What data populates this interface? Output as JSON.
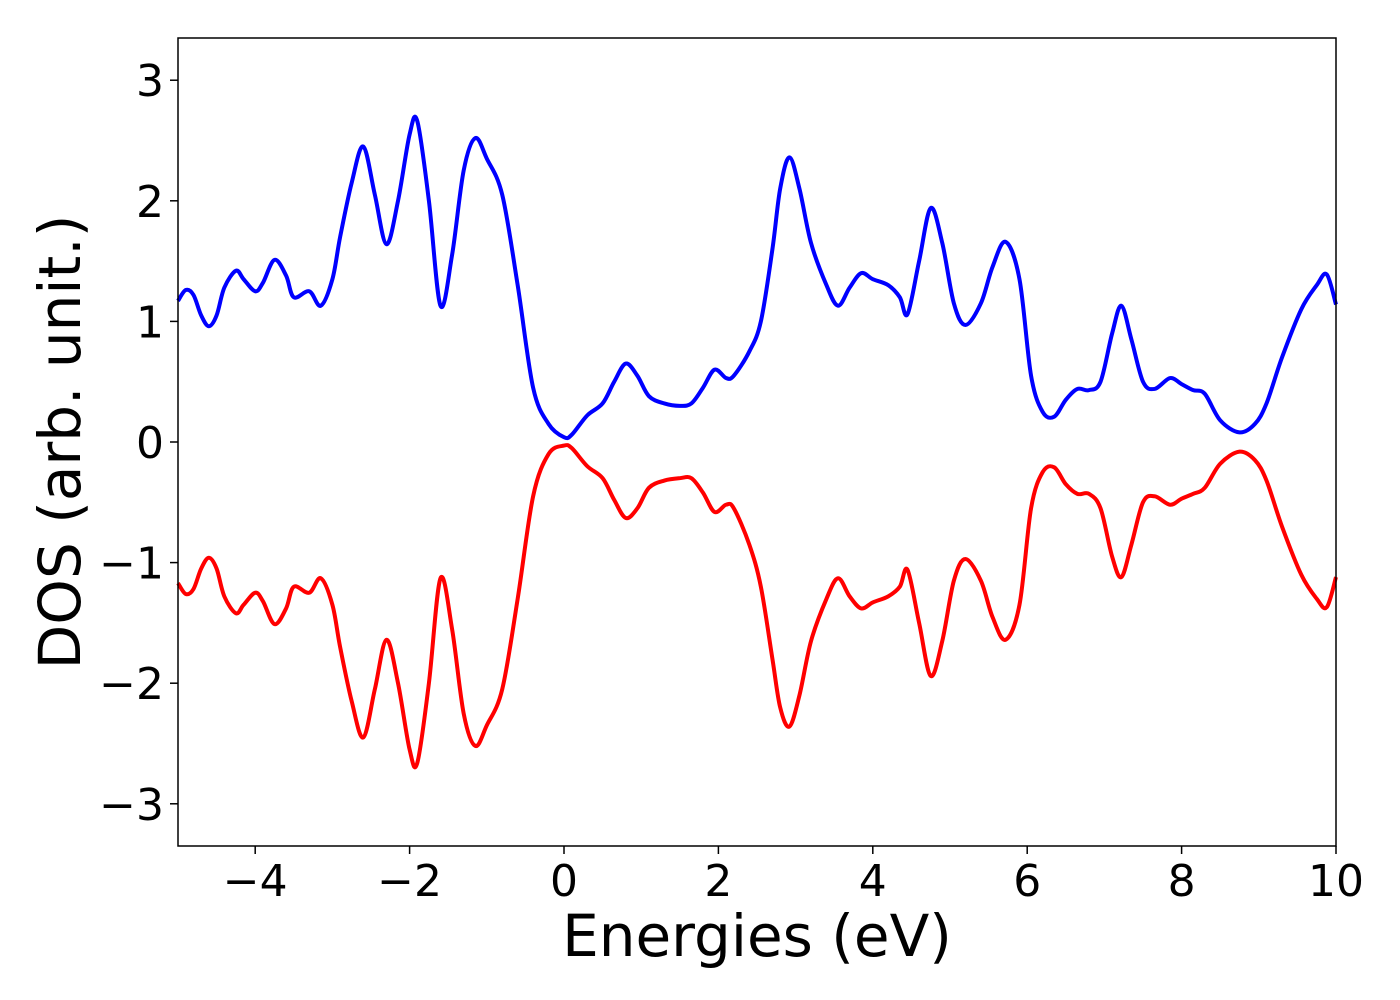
{
  "chart_data": {
    "type": "line",
    "title": "",
    "xlabel": "Energies (eV)",
    "ylabel": "DOS (arb. unit.)",
    "xlim": [
      -5,
      10
    ],
    "ylim": [
      -3.35,
      3.35
    ],
    "xticks": [
      -4,
      -2,
      0,
      2,
      4,
      6,
      8,
      10
    ],
    "xtick_labels": [
      "−4",
      "−2",
      "0",
      "2",
      "4",
      "6",
      "8",
      "10"
    ],
    "yticks": [
      3,
      2,
      1,
      0,
      -1,
      -2,
      -3
    ],
    "ytick_labels": [
      "3",
      "2",
      "1",
      "0",
      "−1",
      "−2",
      "−3"
    ],
    "grid": false,
    "legend": "none",
    "series": [
      {
        "color": "#0000ff",
        "points": [
          [
            -5.0,
            1.17
          ],
          [
            -4.9,
            1.26
          ],
          [
            -4.8,
            1.22
          ],
          [
            -4.7,
            1.05
          ],
          [
            -4.6,
            0.96
          ],
          [
            -4.5,
            1.05
          ],
          [
            -4.4,
            1.28
          ],
          [
            -4.25,
            1.42
          ],
          [
            -4.15,
            1.35
          ],
          [
            -4.0,
            1.25
          ],
          [
            -3.9,
            1.32
          ],
          [
            -3.75,
            1.51
          ],
          [
            -3.6,
            1.38
          ],
          [
            -3.5,
            1.2
          ],
          [
            -3.3,
            1.25
          ],
          [
            -3.15,
            1.13
          ],
          [
            -3.0,
            1.35
          ],
          [
            -2.9,
            1.7
          ],
          [
            -2.75,
            2.15
          ],
          [
            -2.6,
            2.45
          ],
          [
            -2.45,
            2.05
          ],
          [
            -2.3,
            1.64
          ],
          [
            -2.15,
            2.0
          ],
          [
            -2.0,
            2.55
          ],
          [
            -1.9,
            2.66
          ],
          [
            -1.75,
            2.0
          ],
          [
            -1.6,
            1.13
          ],
          [
            -1.45,
            1.55
          ],
          [
            -1.3,
            2.25
          ],
          [
            -1.15,
            2.52
          ],
          [
            -1.0,
            2.35
          ],
          [
            -0.8,
            2.05
          ],
          [
            -0.6,
            1.3
          ],
          [
            -0.4,
            0.45
          ],
          [
            -0.2,
            0.15
          ],
          [
            0.0,
            0.04
          ],
          [
            0.1,
            0.06
          ],
          [
            0.3,
            0.22
          ],
          [
            0.5,
            0.32
          ],
          [
            0.65,
            0.5
          ],
          [
            0.8,
            0.65
          ],
          [
            0.95,
            0.55
          ],
          [
            1.1,
            0.38
          ],
          [
            1.3,
            0.32
          ],
          [
            1.5,
            0.3
          ],
          [
            1.65,
            0.32
          ],
          [
            1.8,
            0.45
          ],
          [
            1.95,
            0.6
          ],
          [
            2.1,
            0.53
          ],
          [
            2.2,
            0.55
          ],
          [
            2.4,
            0.75
          ],
          [
            2.55,
            1.0
          ],
          [
            2.7,
            1.6
          ],
          [
            2.8,
            2.1
          ],
          [
            2.92,
            2.36
          ],
          [
            3.05,
            2.1
          ],
          [
            3.2,
            1.65
          ],
          [
            3.4,
            1.3
          ],
          [
            3.55,
            1.13
          ],
          [
            3.7,
            1.28
          ],
          [
            3.85,
            1.4
          ],
          [
            4.0,
            1.35
          ],
          [
            4.2,
            1.3
          ],
          [
            4.35,
            1.2
          ],
          [
            4.45,
            1.06
          ],
          [
            4.6,
            1.5
          ],
          [
            4.75,
            1.94
          ],
          [
            4.9,
            1.65
          ],
          [
            5.05,
            1.15
          ],
          [
            5.2,
            0.97
          ],
          [
            5.4,
            1.15
          ],
          [
            5.55,
            1.45
          ],
          [
            5.72,
            1.66
          ],
          [
            5.9,
            1.35
          ],
          [
            6.05,
            0.55
          ],
          [
            6.2,
            0.25
          ],
          [
            6.35,
            0.21
          ],
          [
            6.5,
            0.35
          ],
          [
            6.65,
            0.44
          ],
          [
            6.8,
            0.43
          ],
          [
            6.95,
            0.5
          ],
          [
            7.1,
            0.9
          ],
          [
            7.22,
            1.13
          ],
          [
            7.35,
            0.85
          ],
          [
            7.5,
            0.5
          ],
          [
            7.65,
            0.44
          ],
          [
            7.85,
            0.53
          ],
          [
            8.0,
            0.48
          ],
          [
            8.15,
            0.43
          ],
          [
            8.3,
            0.4
          ],
          [
            8.5,
            0.18
          ],
          [
            8.75,
            0.08
          ],
          [
            8.95,
            0.15
          ],
          [
            9.1,
            0.32
          ],
          [
            9.3,
            0.7
          ],
          [
            9.55,
            1.1
          ],
          [
            9.75,
            1.3
          ],
          [
            9.88,
            1.39
          ],
          [
            10.0,
            1.14
          ]
        ]
      },
      {
        "color": "#ff0000",
        "points": [
          [
            -5.0,
            -1.17
          ],
          [
            -4.9,
            -1.26
          ],
          [
            -4.8,
            -1.22
          ],
          [
            -4.7,
            -1.05
          ],
          [
            -4.6,
            -0.96
          ],
          [
            -4.5,
            -1.05
          ],
          [
            -4.4,
            -1.28
          ],
          [
            -4.25,
            -1.42
          ],
          [
            -4.15,
            -1.35
          ],
          [
            -4.0,
            -1.25
          ],
          [
            -3.9,
            -1.32
          ],
          [
            -3.75,
            -1.51
          ],
          [
            -3.6,
            -1.38
          ],
          [
            -3.5,
            -1.2
          ],
          [
            -3.3,
            -1.25
          ],
          [
            -3.15,
            -1.13
          ],
          [
            -3.0,
            -1.35
          ],
          [
            -2.9,
            -1.7
          ],
          [
            -2.75,
            -2.15
          ],
          [
            -2.6,
            -2.45
          ],
          [
            -2.45,
            -2.05
          ],
          [
            -2.3,
            -1.64
          ],
          [
            -2.15,
            -2.0
          ],
          [
            -2.0,
            -2.55
          ],
          [
            -1.9,
            -2.66
          ],
          [
            -1.75,
            -2.0
          ],
          [
            -1.6,
            -1.13
          ],
          [
            -1.45,
            -1.55
          ],
          [
            -1.3,
            -2.25
          ],
          [
            -1.15,
            -2.52
          ],
          [
            -1.0,
            -2.35
          ],
          [
            -0.8,
            -2.05
          ],
          [
            -0.6,
            -1.3
          ],
          [
            -0.4,
            -0.45
          ],
          [
            -0.2,
            -0.1
          ],
          [
            0.0,
            -0.03
          ],
          [
            0.1,
            -0.05
          ],
          [
            0.3,
            -0.2
          ],
          [
            0.5,
            -0.3
          ],
          [
            0.65,
            -0.48
          ],
          [
            0.8,
            -0.63
          ],
          [
            0.95,
            -0.55
          ],
          [
            1.1,
            -0.38
          ],
          [
            1.3,
            -0.32
          ],
          [
            1.5,
            -0.3
          ],
          [
            1.65,
            -0.3
          ],
          [
            1.8,
            -0.42
          ],
          [
            1.95,
            -0.58
          ],
          [
            2.1,
            -0.52
          ],
          [
            2.2,
            -0.55
          ],
          [
            2.4,
            -0.85
          ],
          [
            2.55,
            -1.2
          ],
          [
            2.7,
            -1.8
          ],
          [
            2.8,
            -2.2
          ],
          [
            2.92,
            -2.36
          ],
          [
            3.05,
            -2.1
          ],
          [
            3.2,
            -1.65
          ],
          [
            3.4,
            -1.3
          ],
          [
            3.55,
            -1.13
          ],
          [
            3.7,
            -1.28
          ],
          [
            3.85,
            -1.38
          ],
          [
            4.0,
            -1.33
          ],
          [
            4.2,
            -1.28
          ],
          [
            4.35,
            -1.2
          ],
          [
            4.45,
            -1.06
          ],
          [
            4.6,
            -1.5
          ],
          [
            4.75,
            -1.94
          ],
          [
            4.9,
            -1.65
          ],
          [
            5.05,
            -1.15
          ],
          [
            5.2,
            -0.97
          ],
          [
            5.4,
            -1.15
          ],
          [
            5.55,
            -1.45
          ],
          [
            5.72,
            -1.64
          ],
          [
            5.9,
            -1.35
          ],
          [
            6.05,
            -0.55
          ],
          [
            6.2,
            -0.25
          ],
          [
            6.35,
            -0.21
          ],
          [
            6.5,
            -0.35
          ],
          [
            6.65,
            -0.43
          ],
          [
            6.8,
            -0.43
          ],
          [
            6.95,
            -0.55
          ],
          [
            7.1,
            -0.95
          ],
          [
            7.22,
            -1.12
          ],
          [
            7.35,
            -0.85
          ],
          [
            7.5,
            -0.5
          ],
          [
            7.65,
            -0.45
          ],
          [
            7.85,
            -0.52
          ],
          [
            8.0,
            -0.47
          ],
          [
            8.15,
            -0.43
          ],
          [
            8.3,
            -0.38
          ],
          [
            8.5,
            -0.18
          ],
          [
            8.75,
            -0.08
          ],
          [
            8.95,
            -0.15
          ],
          [
            9.1,
            -0.32
          ],
          [
            9.3,
            -0.7
          ],
          [
            9.55,
            -1.1
          ],
          [
            9.75,
            -1.3
          ],
          [
            9.88,
            -1.37
          ],
          [
            10.0,
            -1.12
          ]
        ]
      }
    ]
  }
}
